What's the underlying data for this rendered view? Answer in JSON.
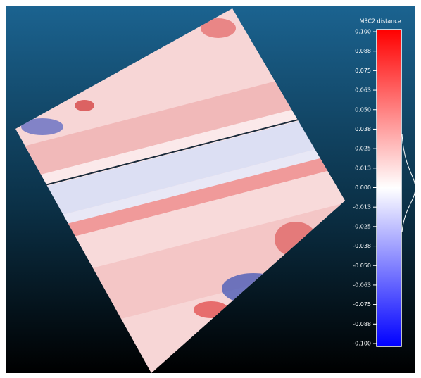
{
  "colorbar": {
    "title": "M3C2 distance",
    "ticks": [
      "0.100",
      "0.088",
      "0.075",
      "0.063",
      "0.050",
      "0.038",
      "0.025",
      "0.013",
      "0.000",
      "-0.013",
      "-0.025",
      "-0.038",
      "-0.050",
      "-0.063",
      "-0.075",
      "-0.088",
      "-0.100"
    ]
  }
}
